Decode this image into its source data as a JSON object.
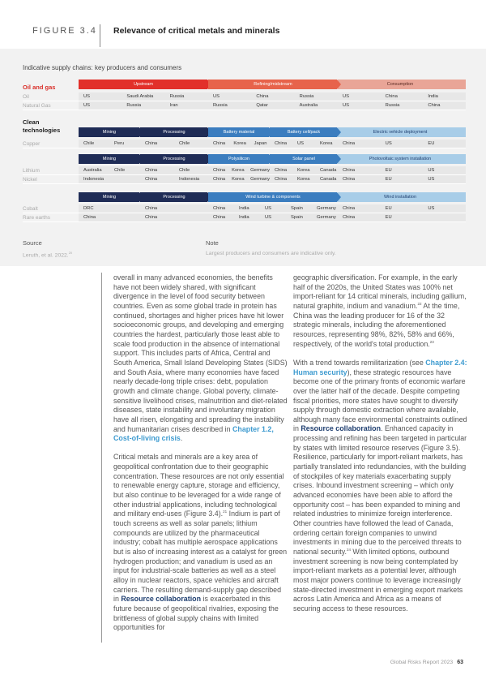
{
  "figure": {
    "label": "FIGURE 3.4",
    "title": "Relevance of critical metals and minerals",
    "subtitle": "Indicative supply chains: key producers and consumers"
  },
  "colors": {
    "upstream": "#e2302a",
    "refining": "#e7634b",
    "consumption": "#e9a597",
    "navy": "#1f2c56",
    "mid_blue": "#3b7dbf",
    "light_blue": "#a8cde8"
  },
  "sections": [
    {
      "label": "Oil and gas",
      "stages": [
        {
          "label": "Upstream",
          "color": "#e2302a"
        },
        {
          "label": "Refining/midstream",
          "color": "#e7634b"
        },
        {
          "label": "Consumption",
          "color": "#e9a597"
        }
      ],
      "rows": [
        {
          "label": "Oil",
          "groups": [
            [
              "US",
              "Saudi Arabia",
              "Russia"
            ],
            [
              "US",
              "China",
              "Russia"
            ],
            [
              "US",
              "China",
              "India"
            ]
          ]
        },
        {
          "label": "Natural Gas",
          "groups": [
            [
              "US",
              "Russia",
              "Iran"
            ],
            [
              "Russia",
              "Qatar",
              "Australia"
            ],
            [
              "US",
              "Russia",
              "China"
            ]
          ]
        }
      ]
    },
    {
      "label": "Clean technologies",
      "stages": [
        {
          "label": "Mining",
          "color": "#1f2c56"
        },
        {
          "label": "Processing",
          "color": "#1f2c56"
        },
        {
          "label": "Battery material",
          "color": "#3b7dbf"
        },
        {
          "label": "Battery cell/pack",
          "color": "#3b7dbf"
        },
        {
          "label": "Electric vehicle deployment",
          "color": "#a8cde8"
        }
      ],
      "rows": [
        {
          "label": "Copper",
          "groups": [
            [
              "Chile",
              "Peru"
            ],
            [
              "China",
              "Chile"
            ],
            [
              "China",
              "Korea",
              "Japan"
            ],
            [
              "China",
              "US",
              "Korea"
            ],
            [
              "China",
              "US",
              "EU"
            ]
          ]
        }
      ]
    },
    {
      "label": "",
      "stages": [
        {
          "label": "Mining",
          "color": "#1f2c56"
        },
        {
          "label": "Processing",
          "color": "#1f2c56"
        },
        {
          "label": "Polysilicon",
          "color": "#3b7dbf"
        },
        {
          "label": "Solar panel",
          "color": "#3b7dbf"
        },
        {
          "label": "Photovoltaic system installation",
          "color": "#a8cde8"
        }
      ],
      "rows": [
        {
          "label": "Lithium",
          "groups": [
            [
              "Australia",
              "Chile"
            ],
            [
              "China",
              "Chile"
            ],
            [
              "China",
              "Korea",
              "Germany"
            ],
            [
              "China",
              "Korea",
              "Canada"
            ],
            [
              "China",
              "EU",
              "US"
            ]
          ]
        },
        {
          "label": "Nickel",
          "groups": [
            [
              "Indonesia"
            ],
            [
              "China",
              "Indonesia"
            ],
            [
              "China",
              "Korea",
              "Germany"
            ],
            [
              "China",
              "Korea",
              "Canada"
            ],
            [
              "China",
              "EU",
              "US"
            ]
          ]
        }
      ]
    },
    {
      "label": "",
      "stages": [
        {
          "label": "Mining",
          "color": "#1f2c56"
        },
        {
          "label": "Processing",
          "color": "#1f2c56"
        },
        {
          "label": "Wind turbine & components",
          "color": "#3b7dbf"
        },
        {
          "label": "Wind installation",
          "color": "#a8cde8"
        }
      ],
      "rows": [
        {
          "label": "Cobalt",
          "groups": [
            [
              "DRC"
            ],
            [
              "China"
            ],
            [
              "China",
              "India",
              "US",
              "Spain",
              "Germany"
            ],
            [
              "China",
              "EU",
              "US"
            ]
          ]
        },
        {
          "label": "Rare earths",
          "groups": [
            [
              "China"
            ],
            [
              "China"
            ],
            [
              "China",
              "India",
              "US",
              "Spain",
              "Germany"
            ],
            [
              "China",
              "EU"
            ]
          ]
        }
      ]
    }
  ],
  "source": {
    "heading": "Source",
    "text": "Leruth, et al. 2022.",
    "ref": "20"
  },
  "note": {
    "heading": "Note",
    "text": "Largest producers and consumers are indicative only."
  },
  "columns": [
    [
      [
        {
          "t": "overall in many advanced economies, the benefits have not been widely shared, with significant divergence in the level of food security between countries. Even as some global trade in protein has continued, shortages and higher prices have hit lower socioeconomic groups, and developing and emerging countries the hardest, particularly those least able to scale food production in the absence of international support. This includes parts of Africa, Central and South America, Small Island Developing States (SIDS) and South Asia, where many economies have faced nearly decade-long triple crises: debt, population growth and climate change. Global poverty, climate-sensitive livelihood crises, malnutrition and diet-related diseases, state instability and involuntary migration have all risen, elongating and spreading the instability and humanitarian crises described in "
        },
        {
          "t": "Chapter 1.2, Cost-of-living crisis",
          "s": "lnk"
        },
        {
          "t": "."
        }
      ],
      [
        {
          "t": "Critical metals and minerals are a key area of geopolitical confrontation due to their geographic concentration. These resources are not only essential to renewable energy capture, storage and efficiency, but also continue to be leveraged for a wide range of other industrial applications, including technological and military end-uses (Figure 3.4)."
        },
        {
          "t": "21",
          "s": "sup"
        },
        {
          "t": " Indium is part of touch screens as well as solar panels; lithium compounds are utilized by the pharmaceutical industry; cobalt has multiple aerospace applications but is also of increasing interest as a catalyst for green hydrogen production; and vanadium is used as an input for industrial-scale batteries as well as a steel alloy in nuclear reactors, space vehicles and aircraft carriers. The resulting demand-supply gap described in "
        },
        {
          "t": "Resource collaboration",
          "s": "lnk2"
        },
        {
          "t": " is exacerbated in this future because of geopolitical rivalries, exposing the brittleness of global supply chains with limited opportunities for"
        }
      ]
    ],
    [
      [
        {
          "t": "geographic diversification. For example, in the early half of the 2020s, the United States was 100% net import-reliant for 14 critical minerals, including gallium, natural graphite, indium and vanadium."
        },
        {
          "t": "22",
          "s": "sup"
        },
        {
          "t": " At the time, China was the leading producer for 16 of the 32 strategic minerals, including the aforementioned resources, representing 98%, 82%, 58% and 66%, respectively, of the world's total production."
        },
        {
          "t": "23",
          "s": "sup"
        }
      ],
      [
        {
          "t": "With a trend towards remilitarization (see "
        },
        {
          "t": "Chapter 2.4: Human security",
          "s": "lnk"
        },
        {
          "t": "), these strategic resources have become one of the primary fronts of economic warfare over the latter half of the decade. Despite competing fiscal priorities, more states have sought to diversify supply through domestic extraction where available, although many face environmental constraints outlined in "
        },
        {
          "t": "Resource collaboration",
          "s": "lnk2"
        },
        {
          "t": ". Enhanced capacity in processing and refining has been targeted in particular by states with limited resource reserves (Figure 3.5). Resilience, particularly for import-reliant markets, has partially translated into redundancies, with the building of stockpiles of key materials exacerbating supply crises. Inbound investment screening – which only advanced economies have been able to afford the opportunity cost – has been expanded to mining and related industries to minimize foreign interference. Other countries have followed the lead of Canada, ordering certain foreign companies to unwind investments in mining due to the perceived threats to national security."
        },
        {
          "t": "24",
          "s": "sup"
        },
        {
          "t": " With limited options, outbound investment screening is now being contemplated by import-reliant markets as a potential lever, although most major powers continue to leverage increasingly state-directed investment in emerging export markets across Latin America and Africa as a means of securing access to these resources."
        }
      ]
    ]
  ],
  "footer": {
    "report": "Global Risks Report 2023",
    "page": "63"
  }
}
